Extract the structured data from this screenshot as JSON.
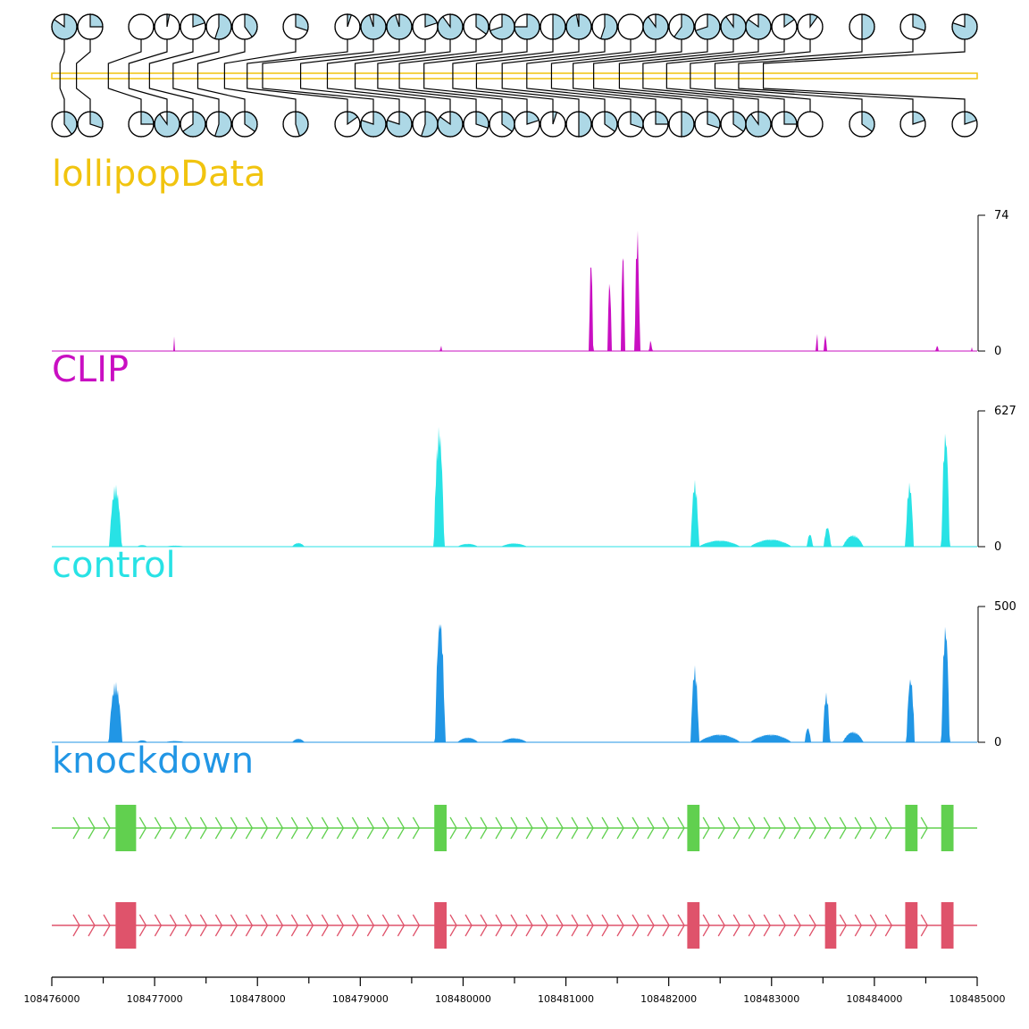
{
  "colors": {
    "lollipop": "#f1c40f",
    "lollipop_fill": "#add8e6",
    "clip": "#c90fc2",
    "control": "#28e2e5",
    "knockdown": "#2196e5",
    "transcript1": "#61d04f",
    "transcript2": "#df536b"
  },
  "chart_data": [
    {
      "type": "lollipop",
      "title": "lollipopData",
      "x_range": [
        108476000,
        108485000
      ],
      "lollipops_top": [
        108476080,
        108476240,
        108476550,
        108476750,
        108476950,
        108477180,
        108477420,
        108477680,
        108477900,
        108478050,
        108478420,
        108478680,
        108478950,
        108479170,
        108479380,
        108479620,
        108479900,
        108480130,
        108480380,
        108480620,
        108480860,
        108481070,
        108481270,
        108481520,
        108481750,
        108481980,
        108482210,
        108482450,
        108482680,
        108482920,
        108483430,
        108483870,
        108484120
      ],
      "lollipops_bottom": [
        108476080,
        108476240,
        108476550,
        108476750,
        108476950,
        108477180,
        108477420,
        108477680,
        108477900,
        108478050,
        108478420,
        108478680,
        108478950,
        108479170,
        108479380,
        108479620,
        108479900,
        108480130,
        108480380,
        108480620,
        108480860,
        108481070,
        108481270,
        108481520,
        108481750,
        108481980,
        108482210,
        108482450,
        108482680,
        108482920,
        108483430,
        108483870,
        108484120
      ]
    },
    {
      "type": "area",
      "title": "CLIP",
      "ylim": [
        0,
        74
      ],
      "yticks": [
        0,
        74
      ],
      "peaks": [
        {
          "x": 108477190,
          "h": 10,
          "w": 10
        },
        {
          "x": 108479790,
          "h": 3,
          "w": 20
        },
        {
          "x": 108481250,
          "h": 52,
          "w": 40
        },
        {
          "x": 108481430,
          "h": 40,
          "w": 40
        },
        {
          "x": 108481560,
          "h": 56,
          "w": 40
        },
        {
          "x": 108481700,
          "h": 68,
          "w": 50
        },
        {
          "x": 108481830,
          "h": 6,
          "w": 30
        },
        {
          "x": 108483450,
          "h": 10,
          "w": 20
        },
        {
          "x": 108483530,
          "h": 9,
          "w": 30
        },
        {
          "x": 108484620,
          "h": 3,
          "w": 30
        },
        {
          "x": 108484960,
          "h": 4,
          "w": 10
        }
      ]
    },
    {
      "type": "area",
      "title": "control",
      "ylim": [
        0,
        627
      ],
      "yticks": [
        0,
        627
      ],
      "peaks": [
        {
          "x": 108476620,
          "h": 290,
          "w": 120
        },
        {
          "x": 108476880,
          "h": 8,
          "w": 100
        },
        {
          "x": 108477200,
          "h": 5,
          "w": 200
        },
        {
          "x": 108478400,
          "h": 18,
          "w": 120
        },
        {
          "x": 108479770,
          "h": 560,
          "w": 100
        },
        {
          "x": 108480050,
          "h": 14,
          "w": 200
        },
        {
          "x": 108480500,
          "h": 16,
          "w": 250
        },
        {
          "x": 108482260,
          "h": 310,
          "w": 80
        },
        {
          "x": 108482500,
          "h": 30,
          "w": 400
        },
        {
          "x": 108483000,
          "h": 35,
          "w": 400
        },
        {
          "x": 108483380,
          "h": 60,
          "w": 60
        },
        {
          "x": 108483550,
          "h": 95,
          "w": 70
        },
        {
          "x": 108483800,
          "h": 55,
          "w": 200
        },
        {
          "x": 108484350,
          "h": 300,
          "w": 80
        },
        {
          "x": 108484700,
          "h": 540,
          "w": 80
        }
      ]
    },
    {
      "type": "area",
      "title": "knockdown",
      "ylim": [
        0,
        500
      ],
      "yticks": [
        0,
        500
      ],
      "peaks": [
        {
          "x": 108476620,
          "h": 225,
          "w": 130
        },
        {
          "x": 108476880,
          "h": 8,
          "w": 100
        },
        {
          "x": 108477200,
          "h": 5,
          "w": 200
        },
        {
          "x": 108478400,
          "h": 14,
          "w": 120
        },
        {
          "x": 108479780,
          "h": 470,
          "w": 100
        },
        {
          "x": 108480050,
          "h": 18,
          "w": 200
        },
        {
          "x": 108480500,
          "h": 16,
          "w": 250
        },
        {
          "x": 108482260,
          "h": 285,
          "w": 80
        },
        {
          "x": 108482500,
          "h": 30,
          "w": 400
        },
        {
          "x": 108483000,
          "h": 30,
          "w": 400
        },
        {
          "x": 108483360,
          "h": 55,
          "w": 60
        },
        {
          "x": 108483540,
          "h": 185,
          "w": 70
        },
        {
          "x": 108483800,
          "h": 40,
          "w": 200
        },
        {
          "x": 108484360,
          "h": 245,
          "w": 80
        },
        {
          "x": 108484700,
          "h": 440,
          "w": 80
        }
      ]
    },
    {
      "type": "gene_model",
      "title": "",
      "transcripts": [
        {
          "exons": [
            [
              108476620,
              108476820
            ],
            [
              108479720,
              108479840
            ],
            [
              108482180,
              108482300
            ],
            [
              108484300,
              108484420
            ],
            [
              108484650,
              108484770
            ]
          ]
        },
        {
          "exons": [
            [
              108476620,
              108476820
            ],
            [
              108479720,
              108479840
            ],
            [
              108482180,
              108482300
            ],
            [
              108483520,
              108483630
            ],
            [
              108484300,
              108484420
            ],
            [
              108484650,
              108484770
            ]
          ]
        }
      ]
    }
  ],
  "axis": {
    "ticks": [
      108476000,
      108477000,
      108478000,
      108479000,
      108480000,
      108481000,
      108482000,
      108483000,
      108484000,
      108485000
    ],
    "tick_labels": [
      "108476000",
      "108477000",
      "108478000",
      "108479000",
      "108480000",
      "108481000",
      "108482000",
      "108483000",
      "108484000",
      "108485000"
    ]
  }
}
